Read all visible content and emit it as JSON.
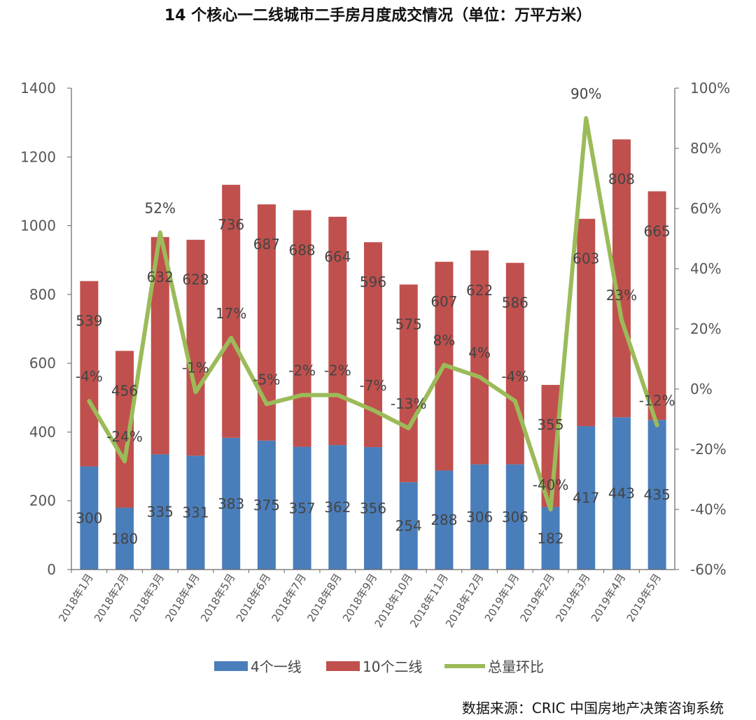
{
  "title": "14 个核心一二线城市二手房月度成交情况（单位：万平方米）",
  "source": "数据来源：CRIC 中国房地产决策咨询系统",
  "chart_data": {
    "type": "bar",
    "stacked": true,
    "categories": [
      "2018年1月",
      "2018年2月",
      "2018年3月",
      "2018年4月",
      "2018年5月",
      "2018年6月",
      "2018年7月",
      "2018年8月",
      "2018年9月",
      "2018年10月",
      "2018年11月",
      "2018年12月",
      "2019年1月",
      "2019年2月",
      "2019年3月",
      "2019年4月",
      "2019年5月"
    ],
    "series": [
      {
        "name": "4个一线",
        "type": "bar",
        "axis": "left",
        "color": "#4A7EBB",
        "values": [
          300,
          180,
          335,
          331,
          383,
          375,
          357,
          362,
          356,
          254,
          288,
          306,
          306,
          182,
          417,
          443,
          435
        ]
      },
      {
        "name": "10个二线",
        "type": "bar",
        "axis": "left",
        "color": "#C0504D",
        "values": [
          539,
          456,
          632,
          628,
          736,
          687,
          688,
          664,
          596,
          575,
          607,
          622,
          586,
          355,
          603,
          808,
          665
        ]
      },
      {
        "name": "总量环比",
        "type": "line",
        "axis": "right",
        "color": "#9BBB59",
        "values": [
          -4,
          -24,
          52,
          -1,
          17,
          -5,
          -2,
          -2,
          -7,
          -13,
          8,
          4,
          -4,
          -40,
          90,
          23,
          -12
        ],
        "labels": [
          "-4%",
          "-24%",
          "52%",
          "-1%",
          "17%",
          "-5%",
          "-2%",
          "-2%",
          "-7%",
          "-13%",
          "8%",
          "4%",
          "-4%",
          "-40%",
          "90%",
          "23%",
          "-12%"
        ]
      }
    ],
    "y_left": {
      "min": 0,
      "max": 1400,
      "ticks": [
        "0",
        "200",
        "400",
        "600",
        "800",
        "1000",
        "1200",
        "1400"
      ]
    },
    "y_right": {
      "min": -60,
      "max": 100,
      "ticks": [
        "-60%",
        "-40%",
        "-20%",
        "0%",
        "20%",
        "40%",
        "60%",
        "80%",
        "100%"
      ]
    },
    "legend_position": "bottom",
    "grid": false
  }
}
